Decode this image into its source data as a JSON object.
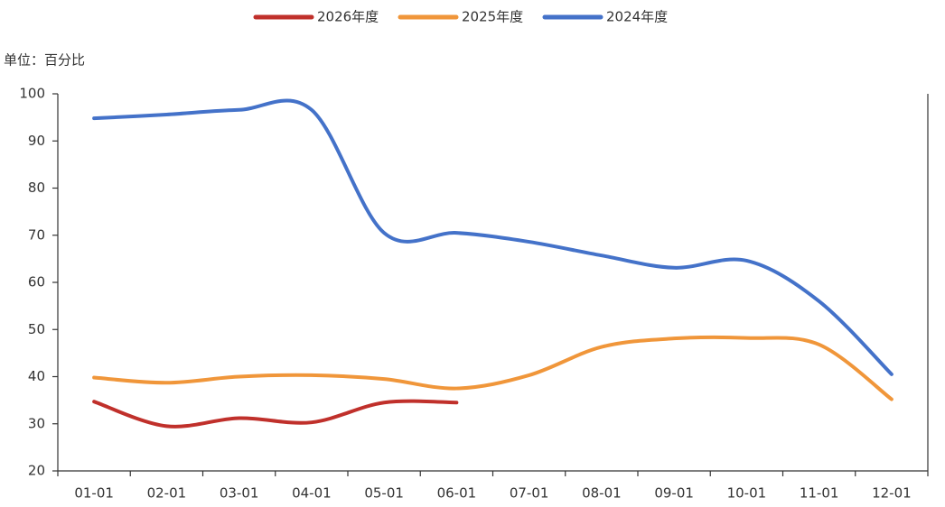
{
  "chart_data": {
    "type": "line",
    "unit_label": "单位：百分比",
    "categories": [
      "01-01",
      "02-01",
      "03-01",
      "04-01",
      "05-01",
      "06-01",
      "07-01",
      "08-01",
      "09-01",
      "10-01",
      "11-01",
      "12-01"
    ],
    "series": [
      {
        "name": "2026年度",
        "color": "#c0302b",
        "values": [
          34.7,
          29.5,
          31.2,
          30.3,
          34.5,
          34.5,
          null,
          null,
          null,
          null,
          null,
          null
        ]
      },
      {
        "name": "2025年度",
        "color": "#f0963a",
        "values": [
          39.8,
          38.7,
          40.0,
          40.3,
          39.5,
          37.5,
          40.3,
          46.3,
          48.1,
          48.2,
          46.8,
          35.2
        ]
      },
      {
        "name": "2024年度",
        "color": "#4472c9",
        "values": [
          94.8,
          95.6,
          96.6,
          96.6,
          70.5,
          70.5,
          68.6,
          65.7,
          63.1,
          64.6,
          56.0,
          40.5
        ]
      }
    ],
    "ylim": [
      20,
      100
    ],
    "yticks": [
      20,
      30,
      40,
      50,
      60,
      70,
      80,
      90,
      100
    ],
    "grid": false,
    "legend": "top"
  }
}
